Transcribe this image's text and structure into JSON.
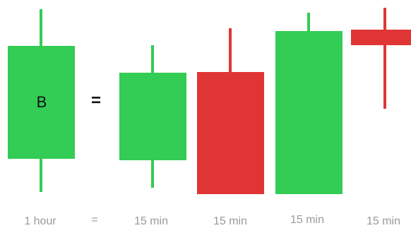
{
  "colors": {
    "bull": "#33cc55",
    "bear": "#e03535",
    "label": "#9a9a9a"
  },
  "hourly_candle": {
    "letter": "B",
    "label": "1 hour",
    "direction": "bull"
  },
  "equals_sign": "=",
  "quarter_candles": [
    {
      "label": "15 min",
      "direction": "bull"
    },
    {
      "label": "15 min",
      "direction": "bear"
    },
    {
      "label": "15 min",
      "direction": "bull"
    },
    {
      "label": "15 min",
      "direction": "bear"
    }
  ]
}
